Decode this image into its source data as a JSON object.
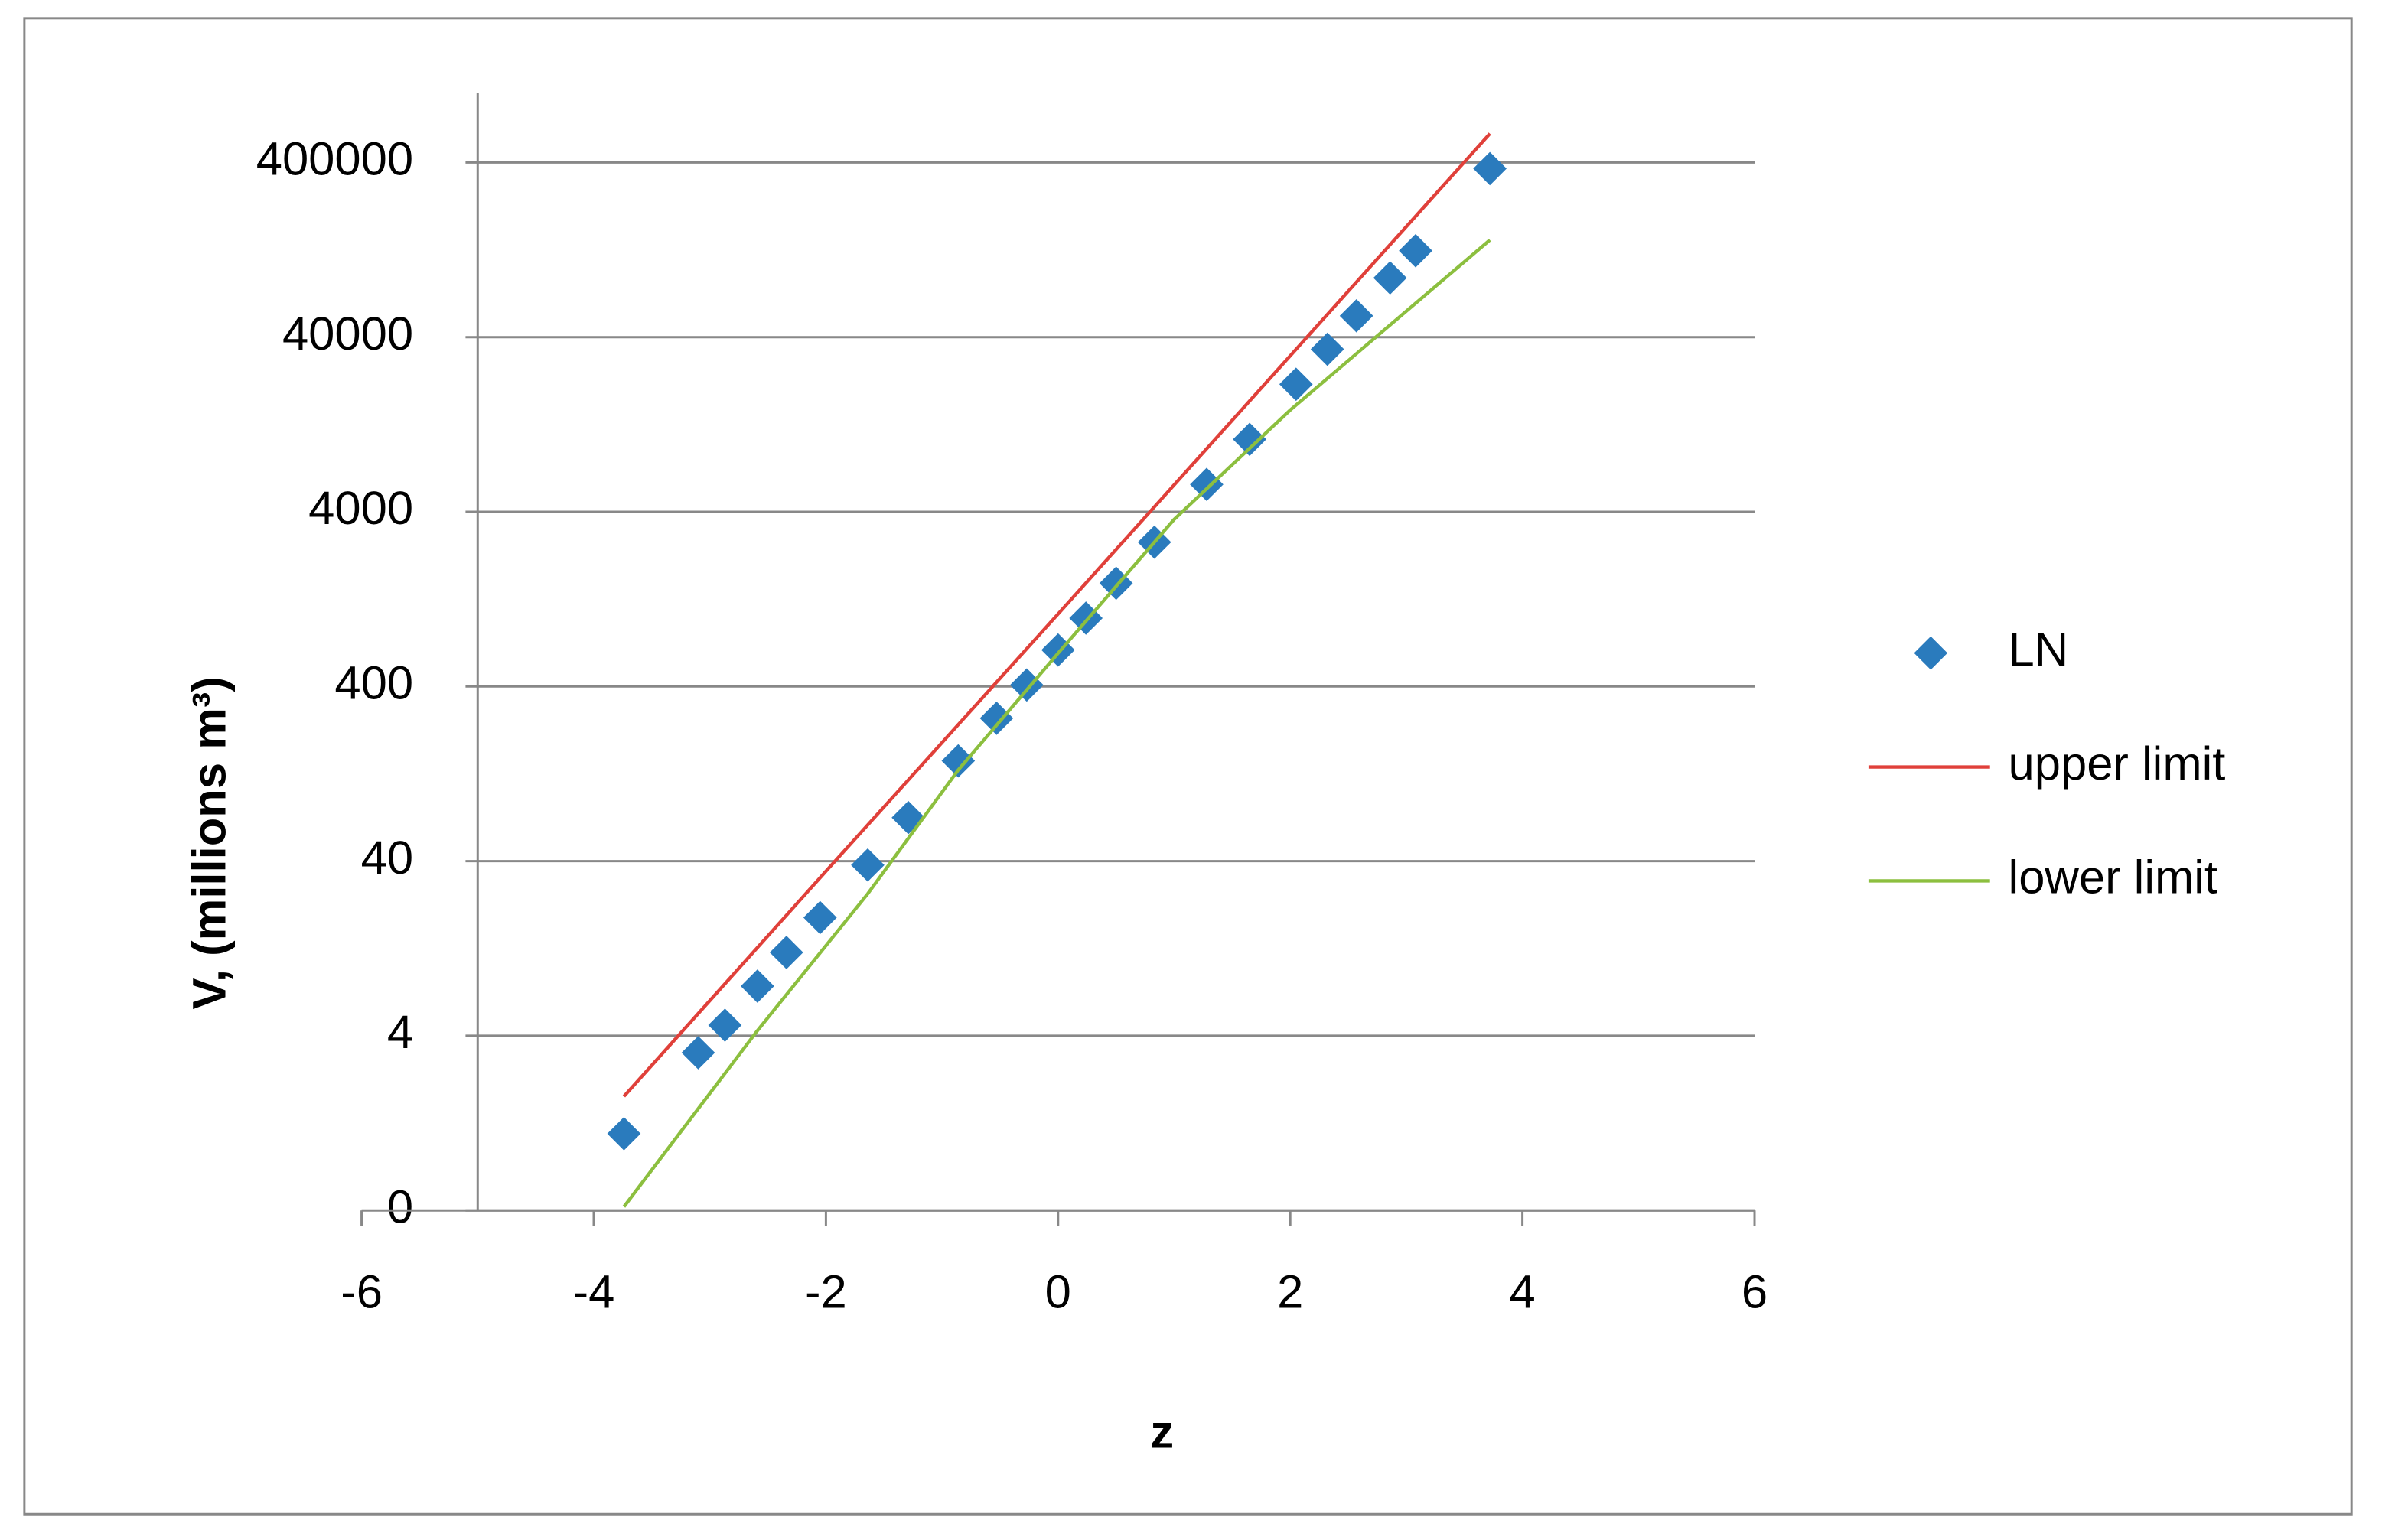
{
  "chart_data": {
    "type": "scatter",
    "x_label": "z",
    "y_label": "V, (millions m³)",
    "xlim": [
      -6,
      6
    ],
    "xticks": [
      -6,
      -4,
      -2,
      0,
      2,
      4,
      6
    ],
    "ylim": [
      0.4,
      1000000
    ],
    "yscale": "log",
    "yticks": [
      {
        "value": 0.4,
        "label": "0"
      },
      4,
      40,
      400,
      4000,
      40000,
      400000
    ],
    "grid": true,
    "legend": "right",
    "y_axis_crosses": -5,
    "series": [
      {
        "name": "LN",
        "style": "markers",
        "color": "#2a7bbd",
        "x": [
          -3.74,
          -3.1,
          -2.87,
          -2.59,
          -2.34,
          -2.05,
          -1.64,
          -1.29,
          -0.86,
          -0.53,
          -0.27,
          0,
          0.24,
          0.5,
          0.83,
          1.28,
          1.65,
          2.05,
          2.32,
          2.57,
          2.86,
          3.08,
          3.72
        ],
        "values": [
          1.1,
          3.2,
          4.6,
          7.7,
          12,
          19,
          38,
          71,
          150,
          263,
          408,
          647,
          985,
          1560,
          2680,
          5740,
          10400,
          21500,
          34100,
          53000,
          87400,
          125000,
          369000
        ]
      },
      {
        "name": "upper limit",
        "style": "line",
        "color": "#e0403a",
        "x": [
          -3.74,
          -2,
          0,
          2,
          3.72
        ],
        "values": [
          1.8,
          35,
          1040,
          31300,
          585000
        ]
      },
      {
        "name": "lower limit",
        "style": "line",
        "color": "#8cbf3f",
        "x": [
          -3.74,
          -2.6,
          -1.64,
          -0.86,
          0,
          1,
          2,
          3.72
        ],
        "values": [
          0.42,
          4.2,
          26,
          133,
          620,
          3620,
          15300,
          144000
        ]
      }
    ]
  }
}
